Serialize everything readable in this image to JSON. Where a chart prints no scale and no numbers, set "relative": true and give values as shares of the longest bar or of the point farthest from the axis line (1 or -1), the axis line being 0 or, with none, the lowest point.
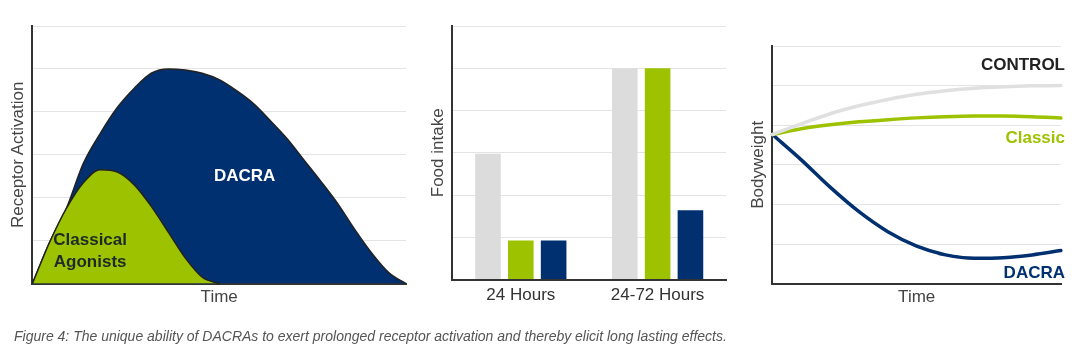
{
  "chart_data": [
    {
      "type": "area",
      "relative": true,
      "ylabel": "Receptor Activation",
      "xlabel": "Time",
      "grid": "y",
      "tick_labels": false,
      "marker": "none",
      "categories": [
        null,
        null,
        null,
        null,
        null,
        null,
        null,
        null,
        null,
        null,
        null,
        null,
        null,
        null,
        null,
        null,
        null,
        null,
        null,
        null,
        null,
        null,
        null
      ],
      "series": [
        {
          "name": "Classical Agonists",
          "color": "#9dc300",
          "values": [
            0,
            0.19,
            0.35,
            0.47,
            0.53,
            0.52,
            0.46,
            0.36,
            0.24,
            0.12,
            0.03,
            0,
            null,
            null,
            null,
            null,
            null,
            null,
            null,
            null,
            null,
            null,
            null
          ]
        },
        {
          "name": "DACRA",
          "color": "#00306f",
          "values": [
            0,
            0.19,
            0.35,
            0.56,
            0.7,
            0.82,
            0.91,
            0.98,
            1,
            0.995,
            0.98,
            0.95,
            0.9,
            0.84,
            0.76,
            0.675,
            0.575,
            0.475,
            0.37,
            0.25,
            0.14,
            0.05,
            0
          ]
        }
      ],
      "annotations": [
        "Figure 4: The unique ability of DACRAs to exert prolonged receptor activation and thereby elicit long lasting effects."
      ]
    },
    {
      "type": "bar",
      "relative": true,
      "ylabel": "Food intake",
      "grid": "y",
      "tick_labels": "x",
      "categories": [
        "24 Hours",
        "24-72 Hours"
      ],
      "series": [
        {
          "color": "#dcdcdc",
          "values": [
            0.595,
            1
          ]
        },
        {
          "color": "#9dc300",
          "values": [
            0.185,
            1
          ]
        },
        {
          "color": "#00306f",
          "values": [
            0.185,
            0.328
          ]
        }
      ]
    },
    {
      "type": "line",
      "relative": true,
      "ylabel": "Bodyweight",
      "xlabel": "Time",
      "grid": "y",
      "tick_labels": false,
      "marker": "none",
      "categories": [
        null,
        null,
        null,
        null,
        null,
        null,
        null,
        null,
        null,
        null,
        null
      ],
      "series": [
        {
          "name": "CONTROL",
          "color": "#e0e0e0",
          "values": [
            0.753,
            0.807,
            0.858,
            0.898,
            0.93,
            0.956,
            0.974,
            0.987,
            0.994,
            0.999,
            1
          ]
        },
        {
          "name": "Classic",
          "color": "#9dc300",
          "values": [
            0.753,
            0.782,
            0.802,
            0.817,
            0.828,
            0.837,
            0.843,
            0.846,
            0.846,
            0.843,
            0.836
          ]
        },
        {
          "name": "DACRA",
          "color": "#00306f",
          "values": [
            0.753,
            0.625,
            0.487,
            0.363,
            0.262,
            0.189,
            0.145,
            0.128,
            0.131,
            0.145,
            0.167
          ]
        }
      ]
    }
  ]
}
